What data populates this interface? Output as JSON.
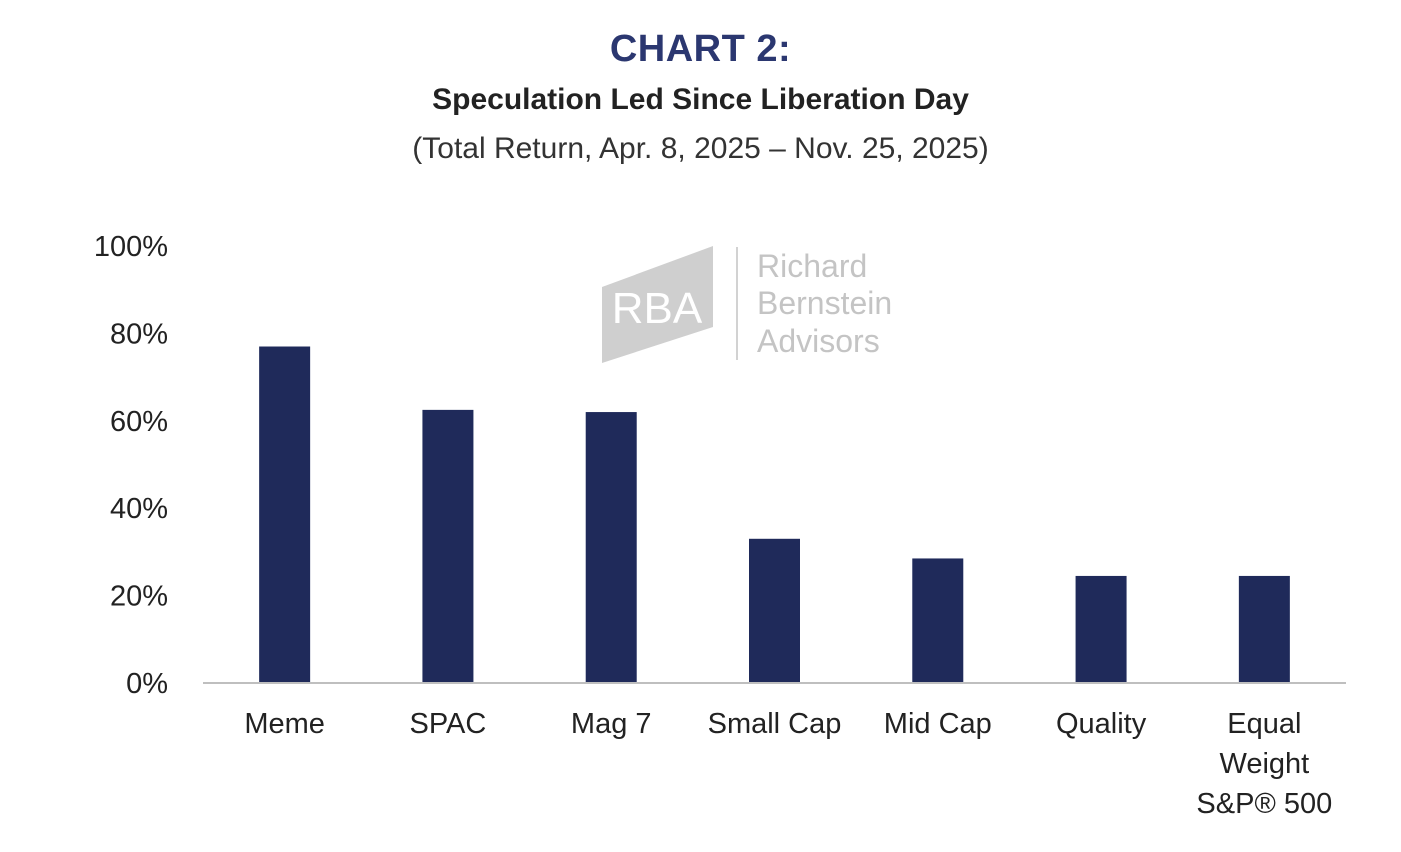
{
  "header": {
    "label": "CHART 2:",
    "title": "Speculation Led Since Liberation Day",
    "subtitle": "(Total Return, Apr. 8, 2025 – Nov. 25, 2025)"
  },
  "watermark": {
    "mark": "RBA",
    "lines": [
      "Richard",
      "Bernstein",
      "Advisors"
    ]
  },
  "colors": {
    "bar": "#1f2a5a",
    "axis": "#bfbfbf",
    "label_title": "#2b3770",
    "watermark": "#c4c4c4"
  },
  "chart_data": {
    "type": "bar",
    "categories": [
      [
        "Meme"
      ],
      [
        "SPAC"
      ],
      [
        "Mag 7"
      ],
      [
        "Small Cap"
      ],
      [
        "Mid Cap"
      ],
      [
        "Quality"
      ],
      [
        "Equal",
        "Weight",
        "S&P® 500"
      ]
    ],
    "values": [
      77,
      62.5,
      62,
      33,
      28.5,
      24.5,
      24.5
    ],
    "unit": "%",
    "ylim": [
      0,
      100
    ],
    "yticks": [
      "0%",
      "20%",
      "40%",
      "60%",
      "80%",
      "100%"
    ],
    "ytick_values": [
      0,
      20,
      40,
      60,
      80,
      100
    ],
    "grid": false,
    "legend": "none"
  }
}
